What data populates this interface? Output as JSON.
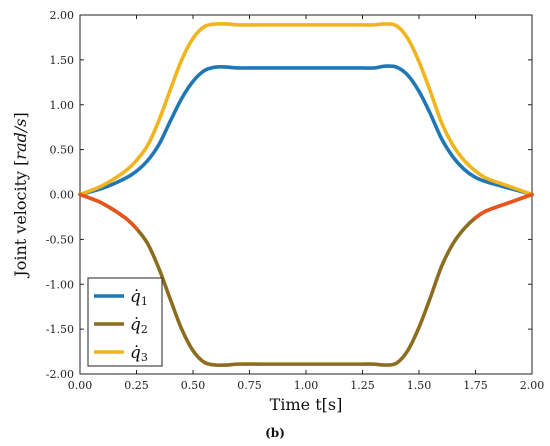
{
  "chart_data": {
    "type": "line",
    "title": "",
    "xlabel": "Time t[s]",
    "ylabel": "Joint velocity [rad/s]",
    "ylabel_parts": {
      "prefix": "Joint velocity ",
      "open": "[",
      "unit": "rad/s",
      "close": "]"
    },
    "xlim": [
      0,
      2
    ],
    "ylim": [
      -2,
      2
    ],
    "xticks": [
      "0.00",
      "0.25",
      "0.50",
      "0.75",
      "1.00",
      "1.25",
      "1.50",
      "1.75",
      "2.00"
    ],
    "yticks": [
      "-2.00",
      "-1.50",
      "-1.00",
      "-0.50",
      "0.00",
      "0.50",
      "1.00",
      "1.50",
      "2.00"
    ],
    "grid": false,
    "legend_position": "bottom-left",
    "panel_label": "(b)",
    "x": [
      0.0,
      0.1,
      0.2,
      0.25,
      0.3,
      0.35,
      0.4,
      0.45,
      0.5,
      0.55,
      0.6,
      0.65,
      0.7,
      0.8,
      0.9,
      1.0,
      1.1,
      1.2,
      1.25,
      1.3,
      1.35,
      1.4,
      1.45,
      1.5,
      1.55,
      1.6,
      1.65,
      1.7,
      1.75,
      1.8,
      1.9,
      2.0
    ],
    "series": [
      {
        "name": "q̇1",
        "name_parts": {
          "symbol": "q̇",
          "sub": "1"
        },
        "color": "#1f77b4",
        "values": [
          0.0,
          0.07,
          0.18,
          0.26,
          0.38,
          0.56,
          0.82,
          1.07,
          1.26,
          1.38,
          1.42,
          1.42,
          1.41,
          1.41,
          1.41,
          1.41,
          1.41,
          1.41,
          1.41,
          1.41,
          1.43,
          1.42,
          1.33,
          1.15,
          0.9,
          0.62,
          0.42,
          0.28,
          0.19,
          0.14,
          0.07,
          0.0
        ]
      },
      {
        "name": "q̇2",
        "name_parts": {
          "symbol": "q̇",
          "sub": "2"
        },
        "color": "#8c6d1f",
        "values": [
          0.0,
          -0.1,
          -0.26,
          -0.38,
          -0.55,
          -0.83,
          -1.17,
          -1.5,
          -1.74,
          -1.87,
          -1.9,
          -1.9,
          -1.89,
          -1.89,
          -1.89,
          -1.89,
          -1.89,
          -1.89,
          -1.89,
          -1.89,
          -1.9,
          -1.88,
          -1.74,
          -1.48,
          -1.15,
          -0.8,
          -0.55,
          -0.38,
          -0.26,
          -0.18,
          -0.09,
          0.0
        ]
      },
      {
        "name": "q̇3",
        "name_parts": {
          "symbol": "q̇",
          "sub": "3"
        },
        "color": "#f0b41c",
        "values": [
          0.0,
          0.1,
          0.26,
          0.38,
          0.55,
          0.83,
          1.17,
          1.5,
          1.74,
          1.87,
          1.9,
          1.9,
          1.89,
          1.89,
          1.89,
          1.89,
          1.89,
          1.89,
          1.89,
          1.89,
          1.9,
          1.88,
          1.74,
          1.48,
          1.15,
          0.8,
          0.55,
          0.38,
          0.26,
          0.18,
          0.09,
          0.0
        ]
      }
    ],
    "overlay_segment": {
      "color": "#e8541e",
      "x_range_start": [
        0.0,
        0.28
      ],
      "x_range_end": [
        1.72,
        2.0
      ],
      "follows_series": 1
    },
    "axis_color": "#222222"
  }
}
